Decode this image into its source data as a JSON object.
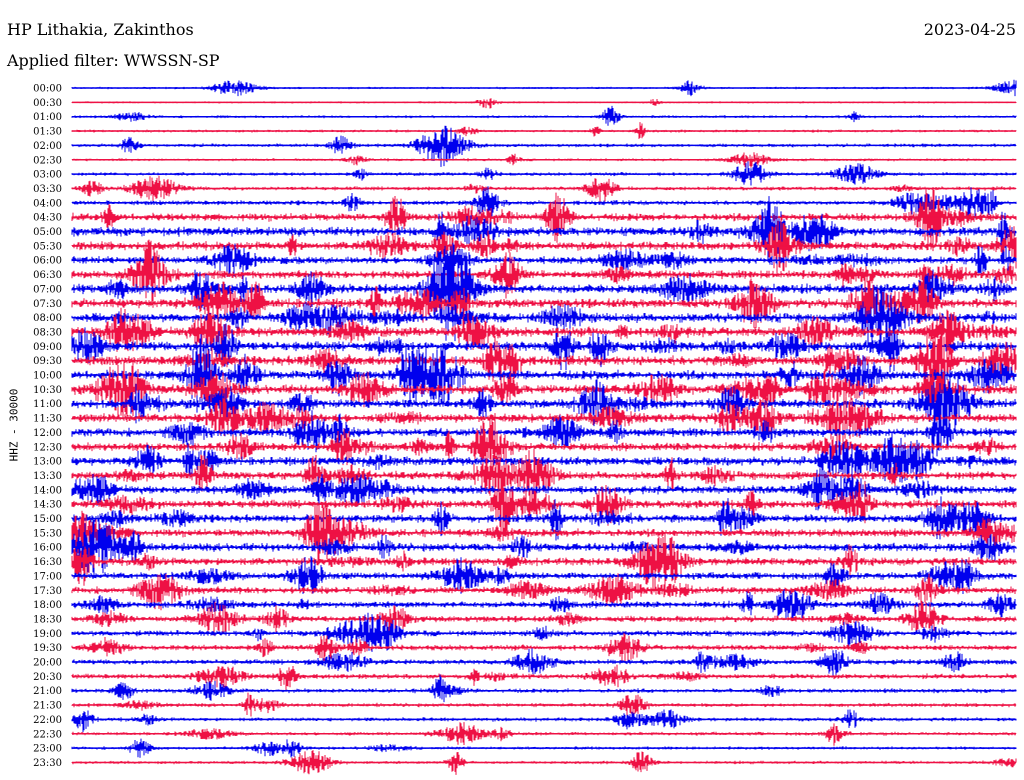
{
  "header": {
    "station": "HP Lithakia, Zakinthos",
    "date": "2023-04-25",
    "filter": "Applied filter: WWSSN-SP"
  },
  "chart_data": {
    "type": "line",
    "ylabel": "HHZ - 30000",
    "rows": [
      "00:00",
      "00:30",
      "01:00",
      "01:30",
      "02:00",
      "02:30",
      "03:00",
      "03:30",
      "04:00",
      "04:30",
      "05:00",
      "05:30",
      "06:00",
      "06:30",
      "07:00",
      "07:30",
      "08:00",
      "08:30",
      "09:00",
      "09:30",
      "10:00",
      "10:30",
      "11:00",
      "11:30",
      "12:00",
      "12:30",
      "13:00",
      "13:30",
      "14:00",
      "14:30",
      "15:00",
      "15:30",
      "16:00",
      "16:30",
      "17:00",
      "17:30",
      "18:00",
      "18:30",
      "19:00",
      "19:30",
      "20:00",
      "20:30",
      "21:00",
      "21:30",
      "22:00",
      "22:30",
      "23:00",
      "23:30"
    ],
    "colors": [
      "#0000ee",
      "#ee1144"
    ],
    "activity": [
      0.08,
      0.05,
      0.15,
      0.15,
      0.25,
      0.15,
      0.25,
      0.3,
      0.4,
      0.8,
      0.95,
      0.9,
      0.75,
      0.85,
      1.0,
      1.0,
      1.0,
      1.0,
      1.0,
      1.0,
      1.0,
      1.0,
      0.95,
      0.95,
      0.9,
      0.85,
      0.9,
      0.85,
      0.85,
      0.85,
      0.8,
      0.8,
      0.85,
      0.8,
      0.7,
      0.7,
      0.65,
      0.6,
      0.55,
      0.5,
      0.45,
      0.45,
      0.35,
      0.3,
      0.3,
      0.25,
      0.2,
      0.2
    ]
  }
}
